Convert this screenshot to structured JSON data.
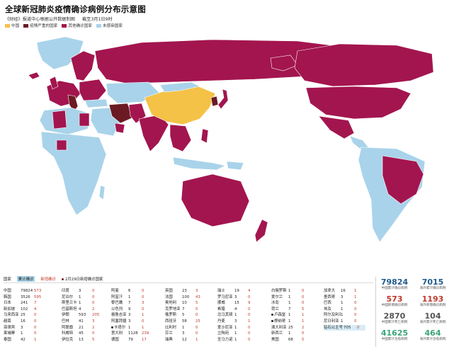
{
  "header": {
    "title": "全球新冠肺炎疫情确诊病例分布示意图",
    "source": "《财经》报道中心根据公开数据制图",
    "date": "截至3月1日9时"
  },
  "legend": [
    {
      "label": "中国",
      "color": "#f4c246"
    },
    {
      "label": "疫情严重的国家",
      "color": "#6b1a24"
    },
    {
      "label": "其他确诊国家",
      "color": "#a3154f"
    },
    {
      "label": "未感染国家",
      "color": "#a9d3ea"
    }
  ],
  "colors": {
    "china": "#f4c246",
    "severe": "#6b1a24",
    "confirmed": "#a3154f",
    "none": "#a9d3ea",
    "accent_red": "#c0392b",
    "total_blue": "#1f5a8c",
    "cured_green": "#3aa57a"
  },
  "table_header": {
    "country": "国家",
    "total": "累计确诊",
    "new": "新增确诊",
    "note": "2月29日新增确诊国家"
  },
  "table_columns": [
    [
      {
        "name": "中国",
        "total": "79824",
        "new": "573"
      },
      {
        "name": "韩国",
        "total": "3526",
        "new": "595"
      },
      {
        "name": "日本",
        "total": "241",
        "new": "7"
      },
      {
        "name": "新加坡",
        "total": "102",
        "new": "4"
      },
      {
        "name": "马来西亚",
        "total": "25",
        "new": "0"
      },
      {
        "name": "越南",
        "total": "16",
        "new": "0"
      },
      {
        "name": "菲律宾",
        "total": "3",
        "new": "0"
      },
      {
        "name": "柬埔寨",
        "total": "1",
        "new": "0"
      },
      {
        "name": "泰国",
        "total": "42",
        "new": "1"
      }
    ],
    [
      {
        "name": "印度",
        "total": "3",
        "new": "0"
      },
      {
        "name": "尼泊尔",
        "total": "1",
        "new": "0"
      },
      {
        "name": "斯里兰卡",
        "total": "1",
        "new": "0"
      },
      {
        "name": "巴基斯坦",
        "total": "4",
        "new": "2"
      },
      {
        "name": "伊朗",
        "total": "593",
        "new": "205"
      },
      {
        "name": "巴林",
        "total": "41",
        "new": "3"
      },
      {
        "name": "阿联酋",
        "total": "21",
        "new": "2"
      },
      {
        "name": "科威特",
        "total": "45",
        "new": "0"
      },
      {
        "name": "伊拉克",
        "total": "13",
        "new": "5"
      }
    ],
    [
      {
        "name": "阿曼",
        "total": "6",
        "new": "0"
      },
      {
        "name": "阿富汗",
        "total": "1",
        "new": "0"
      },
      {
        "name": "黎巴嫩",
        "total": "7",
        "new": "3"
      },
      {
        "name": "以色列",
        "total": "9",
        "new": "0"
      },
      {
        "name": "格鲁吉亚",
        "total": "3",
        "new": "1"
      },
      {
        "name": "阿塞拜疆",
        "total": "3",
        "new": "0"
      },
      {
        "name": "卡塔尔",
        "total": "1",
        "new": "1",
        "dot": true
      },
      {
        "name": "意大利",
        "total": "1128",
        "new": "239"
      },
      {
        "name": "德国",
        "total": "79",
        "new": "17"
      }
    ],
    [
      {
        "name": "英国",
        "total": "23",
        "new": "3"
      },
      {
        "name": "法国",
        "total": "100",
        "new": "43"
      },
      {
        "name": "奥地利",
        "total": "10",
        "new": "5"
      },
      {
        "name": "克罗地亚",
        "total": "7",
        "new": "0"
      },
      {
        "name": "俄罗斯",
        "total": "5",
        "new": "0"
      },
      {
        "name": "西班牙",
        "total": "58",
        "new": "25"
      },
      {
        "name": "比利时",
        "total": "1",
        "new": "0"
      },
      {
        "name": "芬兰",
        "total": "3",
        "new": "0"
      },
      {
        "name": "瑞典",
        "total": "12",
        "new": "1"
      }
    ],
    [
      {
        "name": "瑞士",
        "total": "19",
        "new": "4"
      },
      {
        "name": "罗马尼亚",
        "total": "3",
        "new": "0"
      },
      {
        "name": "挪威",
        "total": "15",
        "new": "9"
      },
      {
        "name": "希腊",
        "total": "4",
        "new": "0"
      },
      {
        "name": "北马其顿",
        "total": "1",
        "new": "0"
      },
      {
        "name": "丹麦",
        "total": "3",
        "new": "1"
      },
      {
        "name": "爱沙尼亚",
        "total": "1",
        "new": "0"
      },
      {
        "name": "立陶宛",
        "total": "1",
        "new": "0"
      },
      {
        "name": "圣马力诺",
        "total": "1",
        "new": "0"
      }
    ],
    [
      {
        "name": "白俄罗斯",
        "total": "1",
        "new": "0"
      },
      {
        "name": "爱尔兰",
        "total": "1",
        "new": "0"
      },
      {
        "name": "冰岛",
        "total": "1",
        "new": "0"
      },
      {
        "name": "荷兰",
        "total": "7",
        "new": "5"
      },
      {
        "name": "卢森堡",
        "total": "1",
        "new": "1",
        "dot": true
      },
      {
        "name": "摩纳哥",
        "total": "1",
        "new": "1",
        "dot": true
      },
      {
        "name": "澳大利亚",
        "total": "25",
        "new": "2"
      },
      {
        "name": "新西兰",
        "total": "1",
        "new": "0"
      },
      {
        "name": "美国",
        "total": "68",
        "new": "5"
      }
    ],
    [
      {
        "name": "加拿大",
        "total": "16",
        "new": "1"
      },
      {
        "name": "墨西哥",
        "total": "3",
        "new": "1"
      },
      {
        "name": "巴西",
        "total": "1",
        "new": "0"
      },
      {
        "name": "埃及",
        "total": "1",
        "new": "0"
      },
      {
        "name": "阿尔及利亚",
        "total": "1",
        "new": "0"
      },
      {
        "name": "尼日利亚",
        "total": "1",
        "new": "0"
      },
      {
        "name": "钻石公主号",
        "total": "705",
        "new": "0"
      }
    ]
  ],
  "stats": [
    {
      "value": "79824",
      "label": "中国累计确诊病例",
      "color": "#1f5a8c"
    },
    {
      "value": "7015",
      "label": "海外累计确诊病例",
      "color": "#1f5a8c"
    },
    {
      "value": "573",
      "label": "中国新增确诊病例",
      "color": "#c0392b"
    },
    {
      "value": "1193",
      "label": "海外新增确诊病例",
      "color": "#c0392b"
    },
    {
      "value": "2870",
      "label": "中国累计死亡病例",
      "color": "#555555"
    },
    {
      "value": "104",
      "label": "海外累计死亡病例",
      "color": "#555555"
    },
    {
      "value": "41625",
      "label": "中国累计治愈病例",
      "color": "#3aa57a"
    },
    {
      "value": "464",
      "label": "海外累计治愈病例",
      "color": "#3aa57a"
    }
  ]
}
